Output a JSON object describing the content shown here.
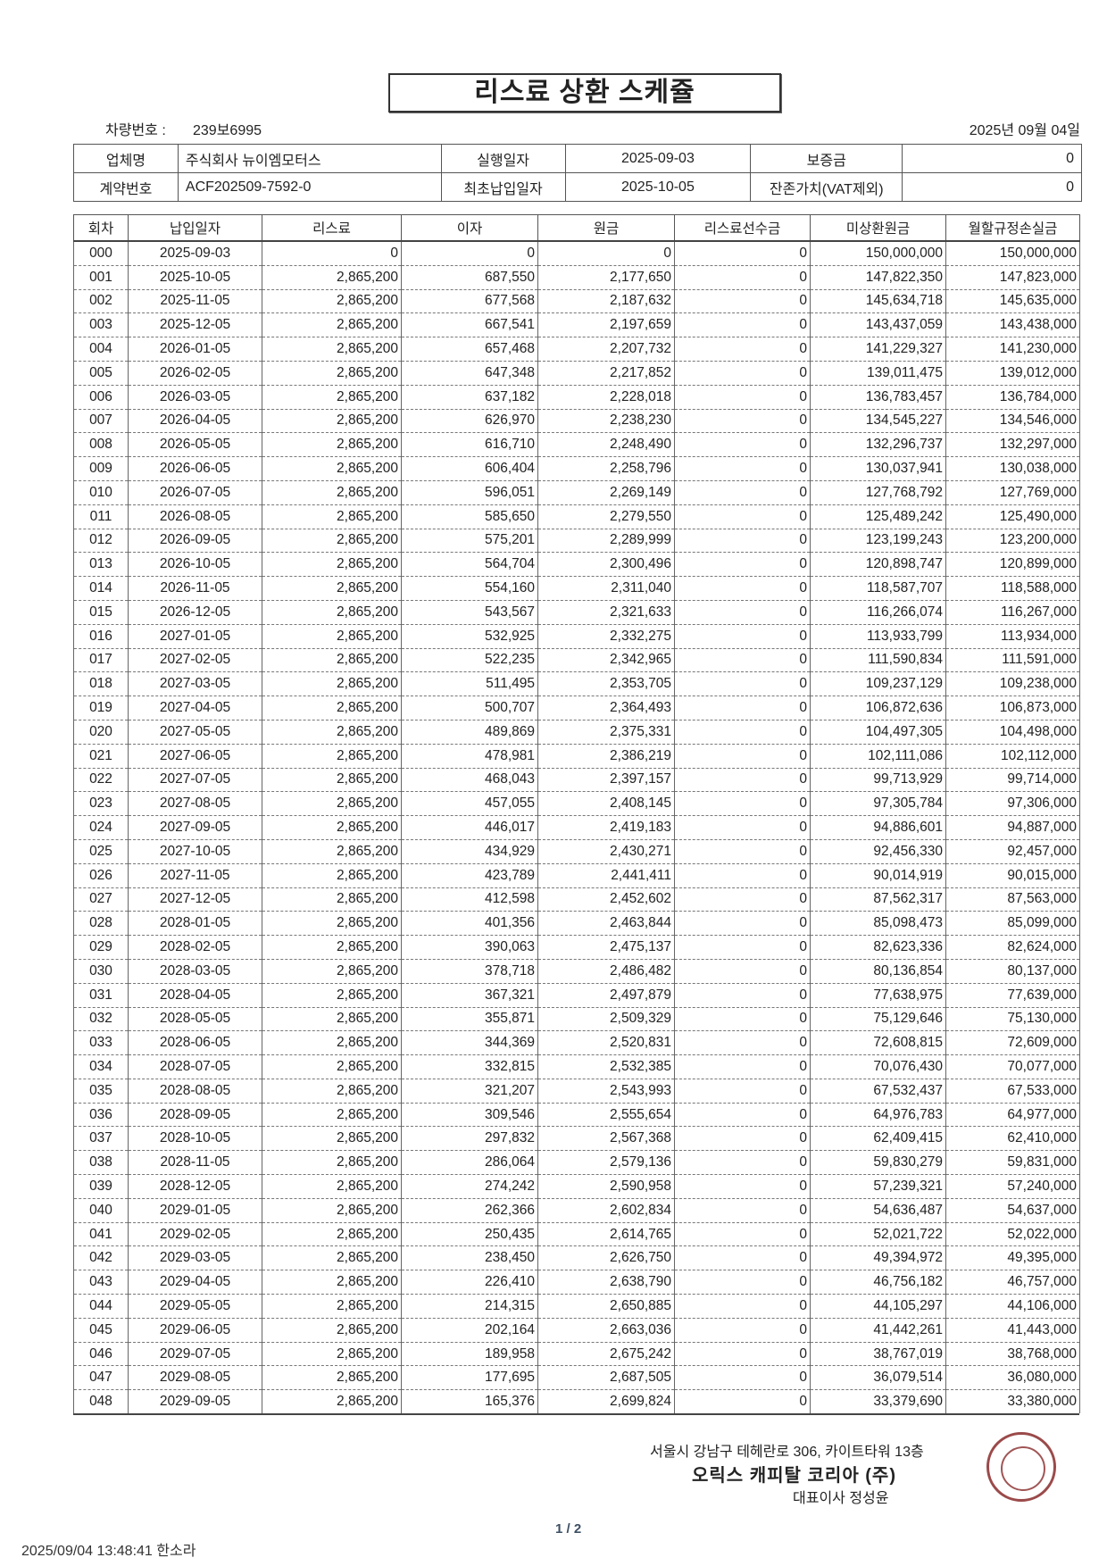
{
  "title": "리스료 상환 스케쥴",
  "vehicle": {
    "label": "차량번호 :",
    "value": "239보6995"
  },
  "issue_date": "2025년 09월 04일",
  "info": {
    "company_label": "업체명",
    "company": "주식회사 뉴이엠모터스",
    "exec_label": "실행일자",
    "exec_date": "2025-09-03",
    "deposit_label": "보증금",
    "deposit": "0",
    "contract_label": "계약번호",
    "contract_no": "ACF202509-7592-0",
    "first_pay_label": "최초납입일자",
    "first_pay_date": "2025-10-05",
    "residual_label": "잔존가치(VAT제외)",
    "residual": "0"
  },
  "schedule": {
    "headers": [
      "회차",
      "납입일자",
      "리스료",
      "이자",
      "원금",
      "리스료선수금",
      "미상환원금",
      "월할규정손실금"
    ],
    "rows": [
      [
        "000",
        "2025-09-03",
        "0",
        "0",
        "0",
        "0",
        "150,000,000",
        "150,000,000"
      ],
      [
        "001",
        "2025-10-05",
        "2,865,200",
        "687,550",
        "2,177,650",
        "0",
        "147,822,350",
        "147,823,000"
      ],
      [
        "002",
        "2025-11-05",
        "2,865,200",
        "677,568",
        "2,187,632",
        "0",
        "145,634,718",
        "145,635,000"
      ],
      [
        "003",
        "2025-12-05",
        "2,865,200",
        "667,541",
        "2,197,659",
        "0",
        "143,437,059",
        "143,438,000"
      ],
      [
        "004",
        "2026-01-05",
        "2,865,200",
        "657,468",
        "2,207,732",
        "0",
        "141,229,327",
        "141,230,000"
      ],
      [
        "005",
        "2026-02-05",
        "2,865,200",
        "647,348",
        "2,217,852",
        "0",
        "139,011,475",
        "139,012,000"
      ],
      [
        "006",
        "2026-03-05",
        "2,865,200",
        "637,182",
        "2,228,018",
        "0",
        "136,783,457",
        "136,784,000"
      ],
      [
        "007",
        "2026-04-05",
        "2,865,200",
        "626,970",
        "2,238,230",
        "0",
        "134,545,227",
        "134,546,000"
      ],
      [
        "008",
        "2026-05-05",
        "2,865,200",
        "616,710",
        "2,248,490",
        "0",
        "132,296,737",
        "132,297,000"
      ],
      [
        "009",
        "2026-06-05",
        "2,865,200",
        "606,404",
        "2,258,796",
        "0",
        "130,037,941",
        "130,038,000"
      ],
      [
        "010",
        "2026-07-05",
        "2,865,200",
        "596,051",
        "2,269,149",
        "0",
        "127,768,792",
        "127,769,000"
      ],
      [
        "011",
        "2026-08-05",
        "2,865,200",
        "585,650",
        "2,279,550",
        "0",
        "125,489,242",
        "125,490,000"
      ],
      [
        "012",
        "2026-09-05",
        "2,865,200",
        "575,201",
        "2,289,999",
        "0",
        "123,199,243",
        "123,200,000"
      ],
      [
        "013",
        "2026-10-05",
        "2,865,200",
        "564,704",
        "2,300,496",
        "0",
        "120,898,747",
        "120,899,000"
      ],
      [
        "014",
        "2026-11-05",
        "2,865,200",
        "554,160",
        "2,311,040",
        "0",
        "118,587,707",
        "118,588,000"
      ],
      [
        "015",
        "2026-12-05",
        "2,865,200",
        "543,567",
        "2,321,633",
        "0",
        "116,266,074",
        "116,267,000"
      ],
      [
        "016",
        "2027-01-05",
        "2,865,200",
        "532,925",
        "2,332,275",
        "0",
        "113,933,799",
        "113,934,000"
      ],
      [
        "017",
        "2027-02-05",
        "2,865,200",
        "522,235",
        "2,342,965",
        "0",
        "111,590,834",
        "111,591,000"
      ],
      [
        "018",
        "2027-03-05",
        "2,865,200",
        "511,495",
        "2,353,705",
        "0",
        "109,237,129",
        "109,238,000"
      ],
      [
        "019",
        "2027-04-05",
        "2,865,200",
        "500,707",
        "2,364,493",
        "0",
        "106,872,636",
        "106,873,000"
      ],
      [
        "020",
        "2027-05-05",
        "2,865,200",
        "489,869",
        "2,375,331",
        "0",
        "104,497,305",
        "104,498,000"
      ],
      [
        "021",
        "2027-06-05",
        "2,865,200",
        "478,981",
        "2,386,219",
        "0",
        "102,111,086",
        "102,112,000"
      ],
      [
        "022",
        "2027-07-05",
        "2,865,200",
        "468,043",
        "2,397,157",
        "0",
        "99,713,929",
        "99,714,000"
      ],
      [
        "023",
        "2027-08-05",
        "2,865,200",
        "457,055",
        "2,408,145",
        "0",
        "97,305,784",
        "97,306,000"
      ],
      [
        "024",
        "2027-09-05",
        "2,865,200",
        "446,017",
        "2,419,183",
        "0",
        "94,886,601",
        "94,887,000"
      ],
      [
        "025",
        "2027-10-05",
        "2,865,200",
        "434,929",
        "2,430,271",
        "0",
        "92,456,330",
        "92,457,000"
      ],
      [
        "026",
        "2027-11-05",
        "2,865,200",
        "423,789",
        "2,441,411",
        "0",
        "90,014,919",
        "90,015,000"
      ],
      [
        "027",
        "2027-12-05",
        "2,865,200",
        "412,598",
        "2,452,602",
        "0",
        "87,562,317",
        "87,563,000"
      ],
      [
        "028",
        "2028-01-05",
        "2,865,200",
        "401,356",
        "2,463,844",
        "0",
        "85,098,473",
        "85,099,000"
      ],
      [
        "029",
        "2028-02-05",
        "2,865,200",
        "390,063",
        "2,475,137",
        "0",
        "82,623,336",
        "82,624,000"
      ],
      [
        "030",
        "2028-03-05",
        "2,865,200",
        "378,718",
        "2,486,482",
        "0",
        "80,136,854",
        "80,137,000"
      ],
      [
        "031",
        "2028-04-05",
        "2,865,200",
        "367,321",
        "2,497,879",
        "0",
        "77,638,975",
        "77,639,000"
      ],
      [
        "032",
        "2028-05-05",
        "2,865,200",
        "355,871",
        "2,509,329",
        "0",
        "75,129,646",
        "75,130,000"
      ],
      [
        "033",
        "2028-06-05",
        "2,865,200",
        "344,369",
        "2,520,831",
        "0",
        "72,608,815",
        "72,609,000"
      ],
      [
        "034",
        "2028-07-05",
        "2,865,200",
        "332,815",
        "2,532,385",
        "0",
        "70,076,430",
        "70,077,000"
      ],
      [
        "035",
        "2028-08-05",
        "2,865,200",
        "321,207",
        "2,543,993",
        "0",
        "67,532,437",
        "67,533,000"
      ],
      [
        "036",
        "2028-09-05",
        "2,865,200",
        "309,546",
        "2,555,654",
        "0",
        "64,976,783",
        "64,977,000"
      ],
      [
        "037",
        "2028-10-05",
        "2,865,200",
        "297,832",
        "2,567,368",
        "0",
        "62,409,415",
        "62,410,000"
      ],
      [
        "038",
        "2028-11-05",
        "2,865,200",
        "286,064",
        "2,579,136",
        "0",
        "59,830,279",
        "59,831,000"
      ],
      [
        "039",
        "2028-12-05",
        "2,865,200",
        "274,242",
        "2,590,958",
        "0",
        "57,239,321",
        "57,240,000"
      ],
      [
        "040",
        "2029-01-05",
        "2,865,200",
        "262,366",
        "2,602,834",
        "0",
        "54,636,487",
        "54,637,000"
      ],
      [
        "041",
        "2029-02-05",
        "2,865,200",
        "250,435",
        "2,614,765",
        "0",
        "52,021,722",
        "52,022,000"
      ],
      [
        "042",
        "2029-03-05",
        "2,865,200",
        "238,450",
        "2,626,750",
        "0",
        "49,394,972",
        "49,395,000"
      ],
      [
        "043",
        "2029-04-05",
        "2,865,200",
        "226,410",
        "2,638,790",
        "0",
        "46,756,182",
        "46,757,000"
      ],
      [
        "044",
        "2029-05-05",
        "2,865,200",
        "214,315",
        "2,650,885",
        "0",
        "44,105,297",
        "44,106,000"
      ],
      [
        "045",
        "2029-06-05",
        "2,865,200",
        "202,164",
        "2,663,036",
        "0",
        "41,442,261",
        "41,443,000"
      ],
      [
        "046",
        "2029-07-05",
        "2,865,200",
        "189,958",
        "2,675,242",
        "0",
        "38,767,019",
        "38,768,000"
      ],
      [
        "047",
        "2029-08-05",
        "2,865,200",
        "177,695",
        "2,687,505",
        "0",
        "36,079,514",
        "36,080,000"
      ],
      [
        "048",
        "2029-09-05",
        "2,865,200",
        "165,376",
        "2,699,824",
        "0",
        "33,379,690",
        "33,380,000"
      ]
    ]
  },
  "footer": {
    "address": "서울시 강남구 테헤란로 306, 카이트타워 13층",
    "company": "오릭스  캐피탈  코리아 (주)",
    "ceo": "대표이사 정성윤",
    "seal_text": "ORIX CAPITAL KOREA CORPORATION",
    "page": "1 / 2",
    "print_stamp": "2025/09/04  13:48:41   한소라"
  },
  "colors": {
    "seal": "#9b4a4a",
    "page_number": "#3d4f63"
  }
}
